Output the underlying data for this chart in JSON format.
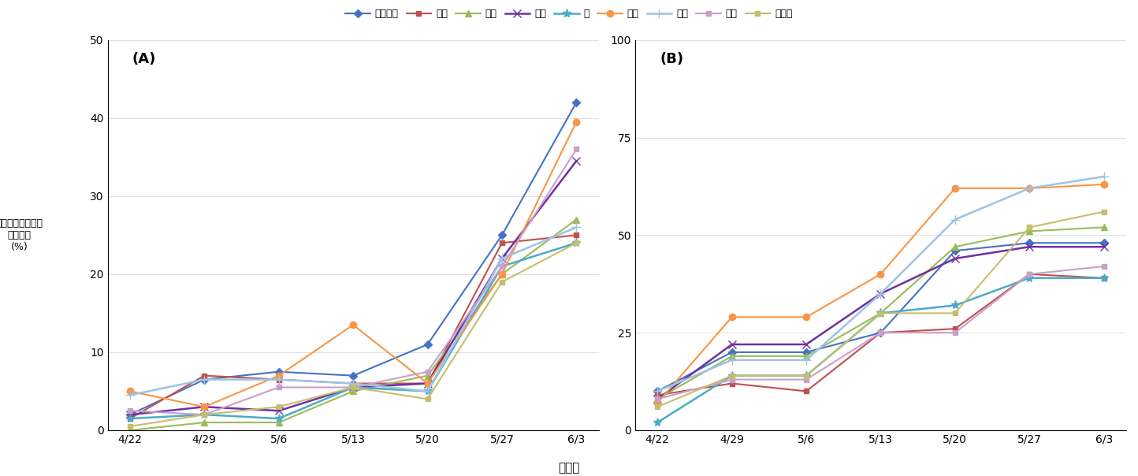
{
  "x_labels": [
    "4/22",
    "4/29",
    "5/6",
    "5/13",
    "5/20",
    "5/27",
    "6/3"
  ],
  "x_positions": [
    0,
    1,
    2,
    3,
    4,
    5,
    6
  ],
  "series_A": {
    "네마장황": [
      2.0,
      6.5,
      7.5,
      7.0,
      11.0,
      25.0,
      42.0
    ],
    "녹두": [
      1.5,
      7.0,
      6.5,
      6.0,
      6.0,
      24.0,
      25.0
    ],
    "대파": [
      0.0,
      1.0,
      1.0,
      5.0,
      7.0,
      20.0,
      27.0
    ],
    "참깨": [
      2.0,
      3.0,
      2.5,
      5.5,
      6.0,
      22.0,
      34.5
    ],
    "콩": [
      1.5,
      2.0,
      1.5,
      5.5,
      5.0,
      21.0,
      24.0
    ],
    "호박": [
      5.0,
      3.0,
      7.0,
      13.5,
      6.0,
      20.0,
      39.5
    ],
    "휴경": [
      4.5,
      6.5,
      6.5,
      6.0,
      5.0,
      22.0,
      26.0
    ],
    "들깨": [
      2.5,
      2.0,
      5.5,
      5.5,
      7.5,
      21.0,
      36.0
    ],
    "적겨자": [
      0.5,
      2.0,
      3.0,
      5.5,
      4.0,
      19.0,
      24.0
    ]
  },
  "series_B": {
    "네마장황": [
      10.0,
      20.0,
      20.0,
      25.0,
      46.0,
      48.0,
      48.0
    ],
    "녹두": [
      9.0,
      12.0,
      10.0,
      25.0,
      26.0,
      40.0,
      39.0
    ],
    "대파": [
      8.0,
      19.0,
      19.0,
      30.0,
      47.0,
      51.0,
      52.0
    ],
    "참깨": [
      8.0,
      22.0,
      22.0,
      35.0,
      44.0,
      47.0,
      47.0
    ],
    "콩": [
      2.0,
      14.0,
      14.0,
      30.0,
      32.0,
      39.0,
      39.0
    ],
    "호박": [
      7.0,
      29.0,
      29.0,
      40.0,
      62.0,
      62.0,
      63.0
    ],
    "휴경": [
      10.0,
      18.0,
      18.0,
      35.0,
      54.0,
      62.0,
      65.0
    ],
    "들깨": [
      8.0,
      13.0,
      13.0,
      25.0,
      25.0,
      40.0,
      42.0
    ],
    "적겨자": [
      6.0,
      14.0,
      14.0,
      30.0,
      30.0,
      52.0,
      56.0
    ]
  },
  "series_styles": {
    "네마장황": {
      "color": "#4472C4",
      "marker": "D",
      "linestyle": "-"
    },
    "녹두": {
      "color": "#C0504D",
      "marker": "s",
      "linestyle": "-"
    },
    "대파": {
      "color": "#9BBB59",
      "marker": "^",
      "linestyle": "-"
    },
    "참깨": {
      "color": "#7030A0",
      "marker": "x",
      "linestyle": "-"
    },
    "콩": {
      "color": "#4BACC6",
      "marker": "*",
      "linestyle": "-"
    },
    "호박": {
      "color": "#F79646",
      "marker": "o",
      "linestyle": "-"
    },
    "휴경": {
      "color": "#9DC3E6",
      "marker": "+",
      "linestyle": "-"
    },
    "들깨": {
      "color": "#C9A0C8",
      "marker": "s",
      "linestyle": "-"
    },
    "적겨자": {
      "color": "#C6BE6C",
      "marker": "s",
      "linestyle": "-"
    }
  },
  "ylabel": "애무기썩음균핵병\n발병주율\n(%)",
  "xlabel": "조사일",
  "title_A": "(A)",
  "title_B": "(B)",
  "ylim_A": [
    0,
    50
  ],
  "ylim_B": [
    0,
    100
  ],
  "yticks_A": [
    0,
    10,
    20,
    30,
    40,
    50
  ],
  "yticks_B": [
    0,
    25,
    50,
    75,
    100
  ]
}
